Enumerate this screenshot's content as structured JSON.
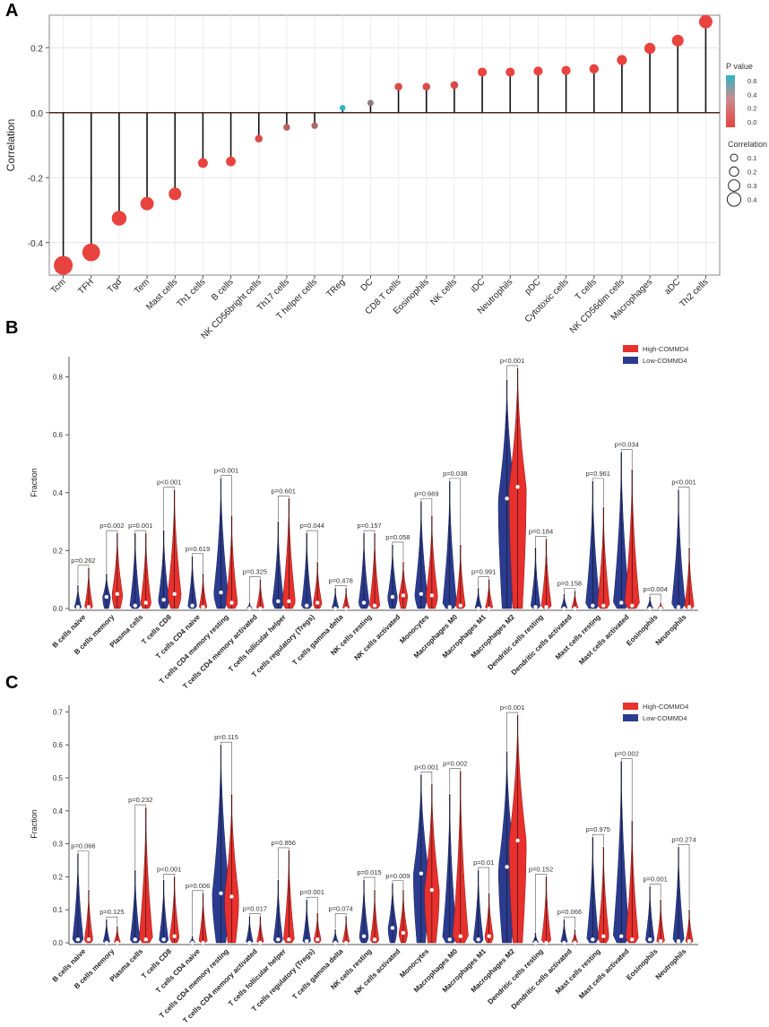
{
  "figure": {
    "panel_a_letter": "A",
    "panel_b_letter": "B",
    "panel_c_letter": "C"
  },
  "colors": {
    "low_p": "#e8433f",
    "high_p": "#2fb4c4",
    "high_group": "#e8302c",
    "low_group": "#2b3b8f"
  },
  "chart_data": [
    {
      "type": "scatter",
      "subtype": "lollipop",
      "title": "",
      "xlabel": "",
      "ylabel": "Correlation",
      "ylim": [
        -0.5,
        0.3
      ],
      "yticks": [
        "0.2",
        "0.0",
        "-0.2",
        "-0.4"
      ],
      "grid": true,
      "categories": [
        "Tcm",
        "TFH",
        "Tgd",
        "Tem",
        "Mast cells",
        "Th1 cells",
        "B cells",
        "NK CD56bright cells",
        "Th17 cells",
        "T helper cells",
        "TReg",
        "DC",
        "CD8 T cells",
        "Eosinophils",
        "NK cells",
        "iDC",
        "Neutrophils",
        "pDC",
        "Cytotoxic cells",
        "T cells",
        "NK CD56dim cells",
        "Macrophages",
        "aDC",
        "Th2 cells"
      ],
      "values": [
        -0.47,
        -0.43,
        -0.325,
        -0.28,
        -0.25,
        -0.155,
        -0.15,
        -0.08,
        -0.045,
        -0.04,
        0.015,
        0.03,
        0.08,
        0.08,
        0.085,
        0.125,
        0.125,
        0.128,
        0.13,
        0.135,
        0.162,
        0.198,
        0.222,
        0.28
      ],
      "p_values": [
        0.0,
        0.0,
        0.0,
        0.0,
        0.0,
        0.0,
        0.0,
        0.05,
        0.15,
        0.2,
        0.62,
        0.3,
        0.05,
        0.05,
        0.04,
        0.0,
        0.0,
        0.0,
        0.0,
        0.0,
        0.0,
        0.0,
        0.0,
        0.0
      ],
      "legend": {
        "p_title": "P value",
        "p_ticks": [
          "0.6",
          "0.4",
          "0.2",
          "0.0"
        ],
        "size_title": "Correlation",
        "size_ticks": [
          "0.1",
          "0.2",
          "0.3",
          "0.4"
        ]
      }
    },
    {
      "type": "violin",
      "title": "",
      "ylabel": "Fraction",
      "ylim": [
        0,
        0.87
      ],
      "yticks": [
        "0.8",
        "0.6",
        "0.4",
        "0.2",
        "0.0"
      ],
      "legend": [
        "High-COMMD4",
        "Low-COMMD4"
      ],
      "categories": [
        "B cells naive",
        "B cells memory",
        "Plasma cells",
        "T cells CD8",
        "T cells CD4 naive",
        "T cells CD4 memory resting",
        "T cells CD4 memory activated",
        "T cells follicular helper",
        "T cells regulatory (Tregs)",
        "T cells gamma delta",
        "NK cells resting",
        "NK cells activated",
        "Monocytes",
        "Macrophages M0",
        "Macrophages M1",
        "Macrophages M2",
        "Dendritic cells resting",
        "Dendritic cells activated",
        "Mast cells resting",
        "Mast cells activated",
        "Eosinophils",
        "Neutrophils"
      ],
      "p_values": [
        "p=0.262",
        "p=0.002",
        "p=0.001",
        "p<0.001",
        "p=0.619",
        "p<0.001",
        "p=0.325",
        "p=0.601",
        "p=0.044",
        "p=0.478",
        "p=0.157",
        "p=0.058",
        "p=0.669",
        "p=0.038",
        "p=0.991",
        "p<0.001",
        "p=0.184",
        "p=0.158",
        "p=0.961",
        "p=0.034",
        "p=0.004",
        "p<0.001"
      ],
      "low_max": [
        0.08,
        0.12,
        0.26,
        0.27,
        0.18,
        0.45,
        0.02,
        0.3,
        0.26,
        0.07,
        0.26,
        0.22,
        0.37,
        0.44,
        0.07,
        0.79,
        0.21,
        0.05,
        0.44,
        0.54,
        0.04,
        0.41
      ],
      "high_max": [
        0.14,
        0.26,
        0.26,
        0.41,
        0.12,
        0.32,
        0.1,
        0.38,
        0.16,
        0.07,
        0.26,
        0.16,
        0.32,
        0.22,
        0.1,
        0.83,
        0.24,
        0.06,
        0.35,
        0.48,
        0.02,
        0.21
      ],
      "low_median": [
        0.005,
        0.04,
        0.01,
        0.03,
        0.01,
        0.055,
        0.0,
        0.025,
        0.01,
        0.0,
        0.02,
        0.04,
        0.05,
        0.005,
        0.0,
        0.38,
        0.005,
        0.0,
        0.01,
        0.02,
        0.0,
        0.005
      ],
      "high_median": [
        0.005,
        0.05,
        0.02,
        0.05,
        0.005,
        0.02,
        0.0,
        0.025,
        0.02,
        0.0,
        0.01,
        0.045,
        0.045,
        0.01,
        0.0,
        0.42,
        0.005,
        0.0,
        0.01,
        0.01,
        0.0,
        0.005
      ]
    },
    {
      "type": "violin",
      "title": "",
      "ylabel": "Fraction",
      "ylim": [
        0,
        0.72
      ],
      "yticks": [
        "0.7",
        "0.6",
        "0.5",
        "0.4",
        "0.3",
        "0.2",
        "0.1",
        "0.0"
      ],
      "legend": [
        "High-COMMD4",
        "Low-COMMD4"
      ],
      "categories": [
        "B cells naive",
        "B cells memory",
        "Plasma cells",
        "T cells CD8",
        "T cells CD4 naive",
        "T cells CD4 memory resting",
        "T cells CD4 memory activated",
        "T cells follicular helper",
        "T cells regulatory (Tregs)",
        "T cells gamma delta",
        "NK cells resting",
        "NK cells activated",
        "Monocytes",
        "Macrophages M0",
        "Macrophages M1",
        "Macrophages M2",
        "Dendritic cells resting",
        "Dendritic cells activated",
        "Mast cells resting",
        "Mast cells activated",
        "Eosinophils",
        "Neutrophils"
      ],
      "p_values": [
        "p=0.066",
        "p=0.125",
        "p=0.232",
        "p<0.001",
        "p=0.006",
        "p=0.115",
        "p=0.017",
        "p=0.856",
        "p=0.001",
        "p=0.074",
        "p=0.015",
        "p=0.009",
        "p<0.001",
        "p=0.002",
        "p=0.01",
        "p<0.001",
        "p=0.152",
        "p=0.066",
        "p=0.975",
        "p=0.002",
        "p=0.001",
        "p=0.274"
      ],
      "low_max": [
        0.27,
        0.07,
        0.22,
        0.19,
        0.02,
        0.6,
        0.08,
        0.19,
        0.13,
        0.04,
        0.19,
        0.18,
        0.51,
        0.45,
        0.22,
        0.58,
        0.03,
        0.07,
        0.32,
        0.55,
        0.17,
        0.29
      ],
      "high_max": [
        0.16,
        0.05,
        0.41,
        0.2,
        0.15,
        0.45,
        0.08,
        0.28,
        0.09,
        0.08,
        0.16,
        0.16,
        0.48,
        0.52,
        0.15,
        0.69,
        0.2,
        0.04,
        0.29,
        0.37,
        0.13,
        0.1
      ],
      "low_median": [
        0.01,
        0.0,
        0.01,
        0.01,
        0.0,
        0.15,
        0.0,
        0.01,
        0.005,
        0.0,
        0.02,
        0.045,
        0.21,
        0.01,
        0.01,
        0.23,
        0.0,
        0.0,
        0.01,
        0.02,
        0.01,
        0.005
      ],
      "high_median": [
        0.01,
        0.0,
        0.01,
        0.02,
        0.0,
        0.14,
        0.0,
        0.01,
        0.01,
        0.0,
        0.01,
        0.03,
        0.16,
        0.02,
        0.02,
        0.31,
        0.0,
        0.0,
        0.02,
        0.01,
        0.005,
        0.005
      ]
    }
  ]
}
